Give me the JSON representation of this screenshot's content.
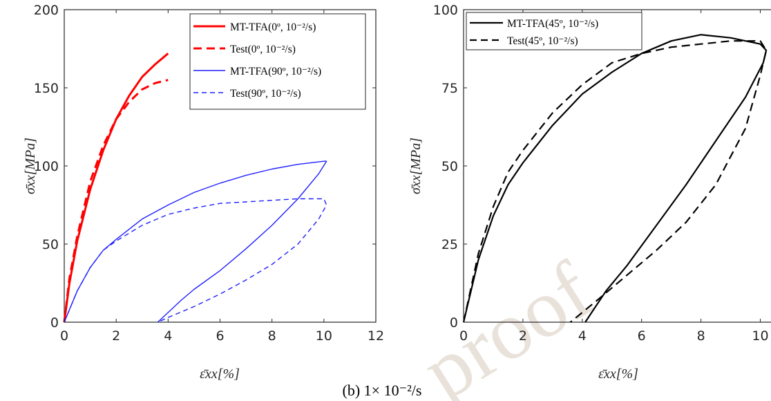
{
  "caption": "(b)  1× 10⁻²/s",
  "watermark": "proof",
  "chart_data": [
    {
      "type": "line",
      "xlabel": "ε̄xx[%]",
      "ylabel": "σ̄xx[MPa]",
      "xlim": [
        0,
        12
      ],
      "ylim": [
        0,
        200
      ],
      "xticks": [
        "0",
        "2",
        "4",
        "6",
        "8",
        "10",
        "12"
      ],
      "yticks": [
        "0",
        "50",
        "100",
        "150",
        "200"
      ],
      "grid": false,
      "legend_position": "top-right",
      "series": [
        {
          "name": "MT-TFA(0º, 10⁻²/s)",
          "color": "#ff0000",
          "style": "solid",
          "width": "thick",
          "x": [
            0,
            0.2,
            0.5,
            1.0,
            1.5,
            2.0,
            2.5,
            3.0,
            3.5,
            4.0
          ],
          "y": [
            0,
            25,
            52,
            85,
            110,
            130,
            145,
            157,
            165,
            172
          ]
        },
        {
          "name": "Test(0º, 10⁻²/s)",
          "color": "#ff0000",
          "style": "dashed",
          "width": "thick",
          "x": [
            0,
            0.2,
            0.5,
            1.0,
            1.5,
            2.0,
            2.5,
            3.0,
            3.5,
            4.0
          ],
          "y": [
            0,
            28,
            55,
            90,
            113,
            130,
            141,
            149,
            153,
            155
          ]
        },
        {
          "name": "MT-TFA(90º, 10⁻²/s)",
          "color": "#1f1fff",
          "style": "solid",
          "width": "thin",
          "x": [
            0,
            0.5,
            1.0,
            1.5,
            2.0,
            3.0,
            4.0,
            5.0,
            6.0,
            7.0,
            8.0,
            9.0,
            10.0,
            10.1,
            9.8,
            9.0,
            8.0,
            7.0,
            6.0,
            5.0,
            4.5,
            3.6
          ],
          "y": [
            0,
            20,
            35,
            46,
            53,
            66,
            75,
            83,
            89,
            94,
            98,
            101,
            103,
            103,
            95,
            79,
            62,
            47,
            33,
            21,
            14,
            0
          ]
        },
        {
          "name": "Test(90º, 10⁻²/s)",
          "color": "#1f1fff",
          "style": "dashed",
          "width": "thin",
          "x": [
            0,
            0.5,
            1.0,
            1.5,
            2.0,
            3.0,
            4.0,
            5.0,
            6.0,
            7.0,
            8.0,
            9.0,
            10.0,
            10.1,
            9.8,
            9.0,
            8.0,
            7.0,
            6.0,
            5.0,
            4.0,
            3.6
          ],
          "y": [
            0,
            20,
            35,
            46,
            52,
            62,
            69,
            73,
            76,
            77,
            78,
            79,
            79,
            75,
            66,
            50,
            37,
            27,
            18,
            10,
            3,
            0
          ]
        }
      ]
    },
    {
      "type": "line",
      "xlabel": "ε̄xx[%]",
      "ylabel": "σ̄xx[MPa]",
      "xlim": [
        0,
        10.5
      ],
      "ylim": [
        0,
        100
      ],
      "xticks": [
        "0",
        "2",
        "4",
        "6",
        "8",
        "10"
      ],
      "yticks": [
        "0",
        "25",
        "50",
        "75",
        "100"
      ],
      "grid": false,
      "legend_position": "top-left",
      "series": [
        {
          "name": "MT-TFA(45º, 10⁻²/s)",
          "color": "#000000",
          "style": "solid",
          "width": "thick",
          "x": [
            0,
            0.5,
            1.0,
            1.5,
            2.0,
            3.0,
            4.0,
            5.0,
            6.0,
            7.0,
            8.0,
            9.0,
            10.0,
            10.2,
            10.1,
            9.5,
            8.5,
            7.5,
            6.5,
            5.5,
            4.8,
            4.1
          ],
          "y": [
            0,
            20,
            34,
            44,
            51,
            63,
            73,
            80,
            86,
            90,
            92,
            91,
            89,
            87,
            83,
            72,
            58,
            44,
            31,
            18,
            10,
            0
          ]
        },
        {
          "name": "Test(45º, 10⁻²/s)",
          "color": "#000000",
          "style": "dashed",
          "width": "thick",
          "x": [
            0,
            0.5,
            1.0,
            1.5,
            2.0,
            3.0,
            4.0,
            5.0,
            6.0,
            7.0,
            8.0,
            9.0,
            10.0,
            10.2,
            10.0,
            9.5,
            8.5,
            7.5,
            6.5,
            5.5,
            4.5,
            3.6
          ],
          "y": [
            0,
            22,
            37,
            48,
            55,
            67,
            76,
            83,
            86,
            88,
            89,
            90,
            90,
            87,
            79,
            62,
            44,
            32,
            23,
            15,
            7,
            0
          ]
        }
      ]
    }
  ]
}
